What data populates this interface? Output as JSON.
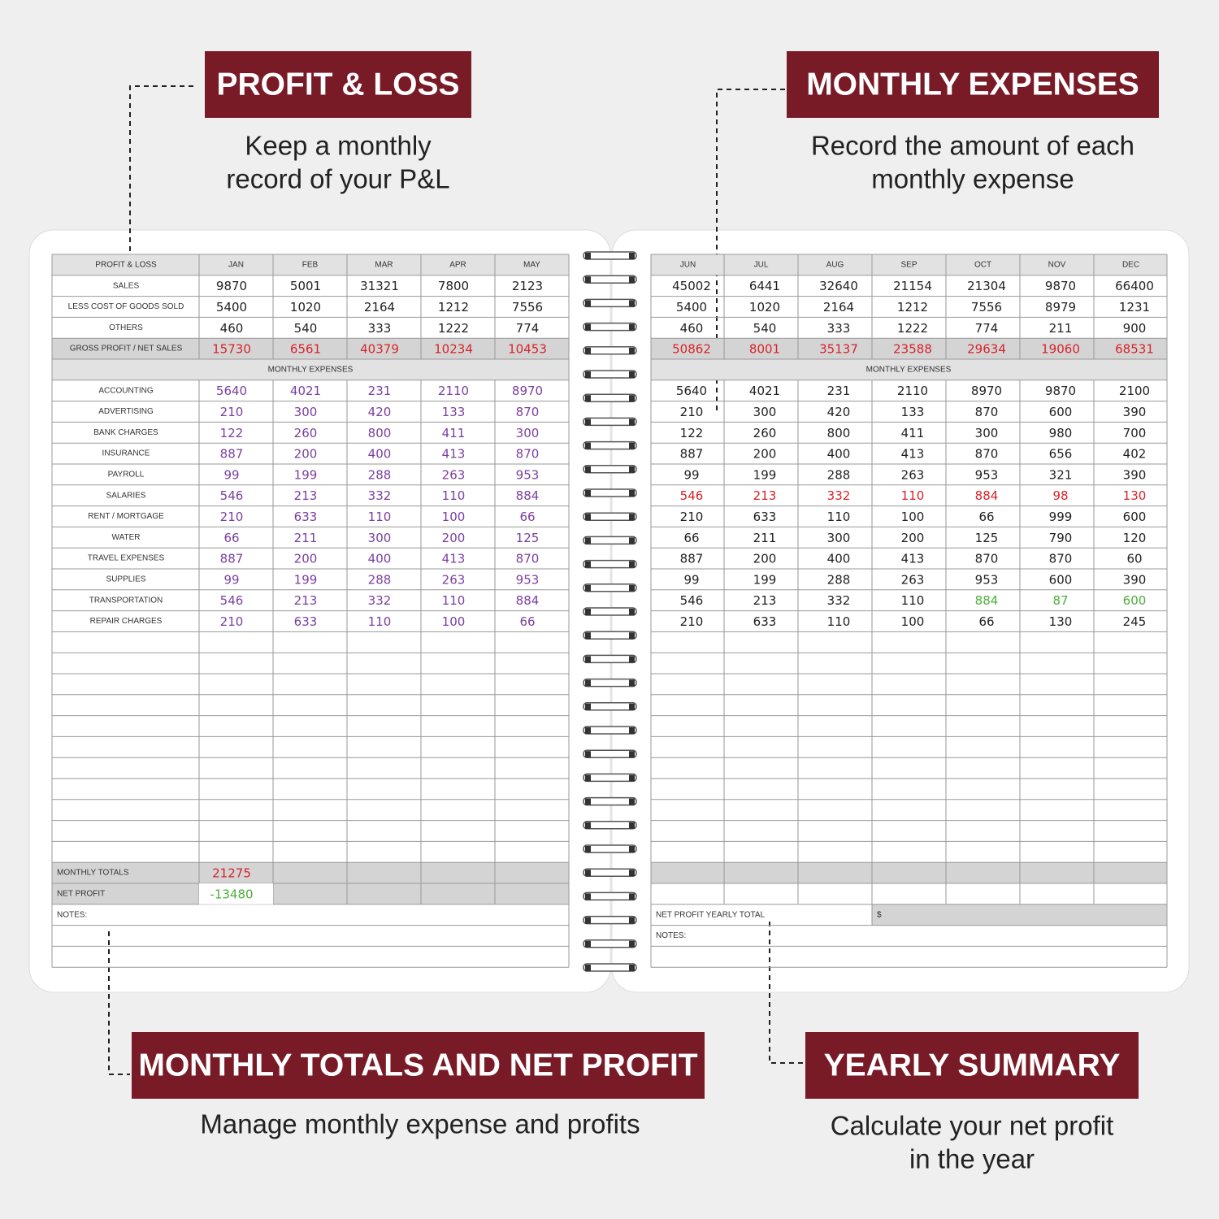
{
  "callouts": [
    {
      "title": "PROFIT & LOSS",
      "text": [
        "Keep a monthly",
        "record of your P&L"
      ]
    },
    {
      "title": "MONTHLY EXPENSES",
      "text": [
        "Record the amount of each",
        "monthly expense"
      ]
    },
    {
      "title": "MONTHLY TOTALS AND NET PROFIT",
      "text": [
        "Manage monthly expense and profits"
      ]
    },
    {
      "title": "YEARLY SUMMARY",
      "text": [
        "Calculate your net profit",
        "in the year"
      ]
    }
  ],
  "left_page": {
    "header": [
      "PROFIT & LOSS",
      "JAN",
      "FEB",
      "MAR",
      "APR",
      "MAY"
    ],
    "rows": [
      {
        "label": "SALES",
        "values": [
          9870,
          5001,
          31321,
          7800,
          2123
        ],
        "color": "#222"
      },
      {
        "label": "LESS COST OF GOODS SOLD",
        "values": [
          5400,
          1020,
          2164,
          1212,
          7556
        ],
        "color": "#222"
      },
      {
        "label": "OTHERS",
        "values": [
          460,
          540,
          333,
          1222,
          774
        ],
        "color": "#222"
      },
      {
        "label": "GROSS PROFIT / NET SALES",
        "values": [
          15730,
          6561,
          40379,
          10234,
          10453
        ],
        "color": "#d8232a"
      }
    ],
    "section": "MONTHLY EXPENSES",
    "expenses": [
      {
        "label": "ACCOUNTING",
        "values": [
          5640,
          4021,
          231,
          2110,
          8970
        ],
        "color": "#7b3fa0"
      },
      {
        "label": "ADVERTISING",
        "values": [
          210,
          300,
          420,
          133,
          870
        ],
        "color": "#7b3fa0"
      },
      {
        "label": "BANK CHARGES",
        "values": [
          122,
          260,
          800,
          411,
          300
        ],
        "color": "#7b3fa0"
      },
      {
        "label": "INSURANCE",
        "values": [
          887,
          200,
          400,
          413,
          870
        ],
        "color": "#7b3fa0"
      },
      {
        "label": "PAYROLL",
        "values": [
          99,
          199,
          288,
          263,
          953
        ],
        "color": "#7b3fa0"
      },
      {
        "label": "SALARIES",
        "values": [
          546,
          213,
          332,
          110,
          884
        ],
        "color": "#7b3fa0"
      },
      {
        "label": "RENT / MORTGAGE",
        "values": [
          210,
          633,
          110,
          100,
          66
        ],
        "color": "#7b3fa0"
      },
      {
        "label": "WATER",
        "values": [
          66,
          211,
          300,
          200,
          125
        ],
        "color": "#7b3fa0"
      },
      {
        "label": "TRAVEL EXPENSES",
        "values": [
          887,
          200,
          400,
          413,
          870
        ],
        "color": "#7b3fa0"
      },
      {
        "label": "SUPPLIES",
        "values": [
          99,
          199,
          288,
          263,
          953
        ],
        "color": "#7b3fa0"
      },
      {
        "label": "TRANSPORTATION",
        "values": [
          546,
          213,
          332,
          110,
          884
        ],
        "color": "#7b3fa0"
      },
      {
        "label": "REPAIR CHARGES",
        "values": [
          210,
          633,
          110,
          100,
          66
        ],
        "color": "#7b3fa0"
      }
    ],
    "totals": [
      {
        "label": "MONTHLY TOTALS",
        "values": [
          21275
        ],
        "color": "#d8232a"
      },
      {
        "label": "NET PROFIT",
        "values": [
          -13480
        ],
        "color": "#4caf3a"
      }
    ],
    "notes": "NOTES:"
  },
  "right_page": {
    "header": [
      "JUN",
      "JUL",
      "AUG",
      "SEP",
      "OCT",
      "NOV",
      "DEC"
    ],
    "rows": [
      {
        "values": [
          45002,
          6441,
          32640,
          21154,
          21304,
          9870,
          66400
        ],
        "color": "#222"
      },
      {
        "values": [
          5400,
          1020,
          2164,
          1212,
          7556,
          8979,
          1231
        ],
        "color": "#222"
      },
      {
        "values": [
          460,
          540,
          333,
          1222,
          774,
          211,
          900
        ],
        "color": "#222"
      },
      {
        "values": [
          50862,
          8001,
          35137,
          23588,
          29634,
          19060,
          68531
        ],
        "color": "#d8232a"
      }
    ],
    "section": "MONTHLY EXPENSES",
    "expenses": [
      {
        "values": [
          5640,
          4021,
          231,
          2110,
          8970,
          9870,
          2100
        ],
        "color": "#222"
      },
      {
        "values": [
          210,
          300,
          420,
          133,
          870,
          600,
          390
        ],
        "color": "#222"
      },
      {
        "values": [
          122,
          260,
          800,
          411,
          300,
          980,
          700
        ],
        "color": "#222"
      },
      {
        "values": [
          887,
          200,
          400,
          413,
          870,
          656,
          402
        ],
        "color": "#222"
      },
      {
        "values": [
          99,
          199,
          288,
          263,
          953,
          321,
          390
        ],
        "color": "#222"
      },
      {
        "values": [
          546,
          213,
          332,
          110,
          884,
          98,
          130
        ],
        "color": "#d8232a"
      },
      {
        "values": [
          210,
          633,
          110,
          100,
          66,
          999,
          600
        ],
        "color": "#222"
      },
      {
        "values": [
          66,
          211,
          300,
          200,
          125,
          790,
          120
        ],
        "color": "#222"
      },
      {
        "values": [
          887,
          200,
          400,
          413,
          870,
          870,
          60
        ],
        "color": "#222"
      },
      {
        "values": [
          99,
          199,
          288,
          263,
          953,
          600,
          390
        ],
        "color": "#222"
      },
      {
        "values": [
          546,
          213,
          332,
          110,
          884,
          87,
          600
        ],
        "colors": [
          "#222",
          "#222",
          "#222",
          "#222",
          "#4caf3a",
          "#4caf3a",
          "#4caf3a"
        ]
      },
      {
        "values": [
          210,
          633,
          110,
          100,
          66,
          130,
          245
        ],
        "color": "#222"
      }
    ],
    "yearly_total": "NET PROFIT YEARLY TOTAL",
    "currency": "$",
    "notes": "NOTES:"
  }
}
